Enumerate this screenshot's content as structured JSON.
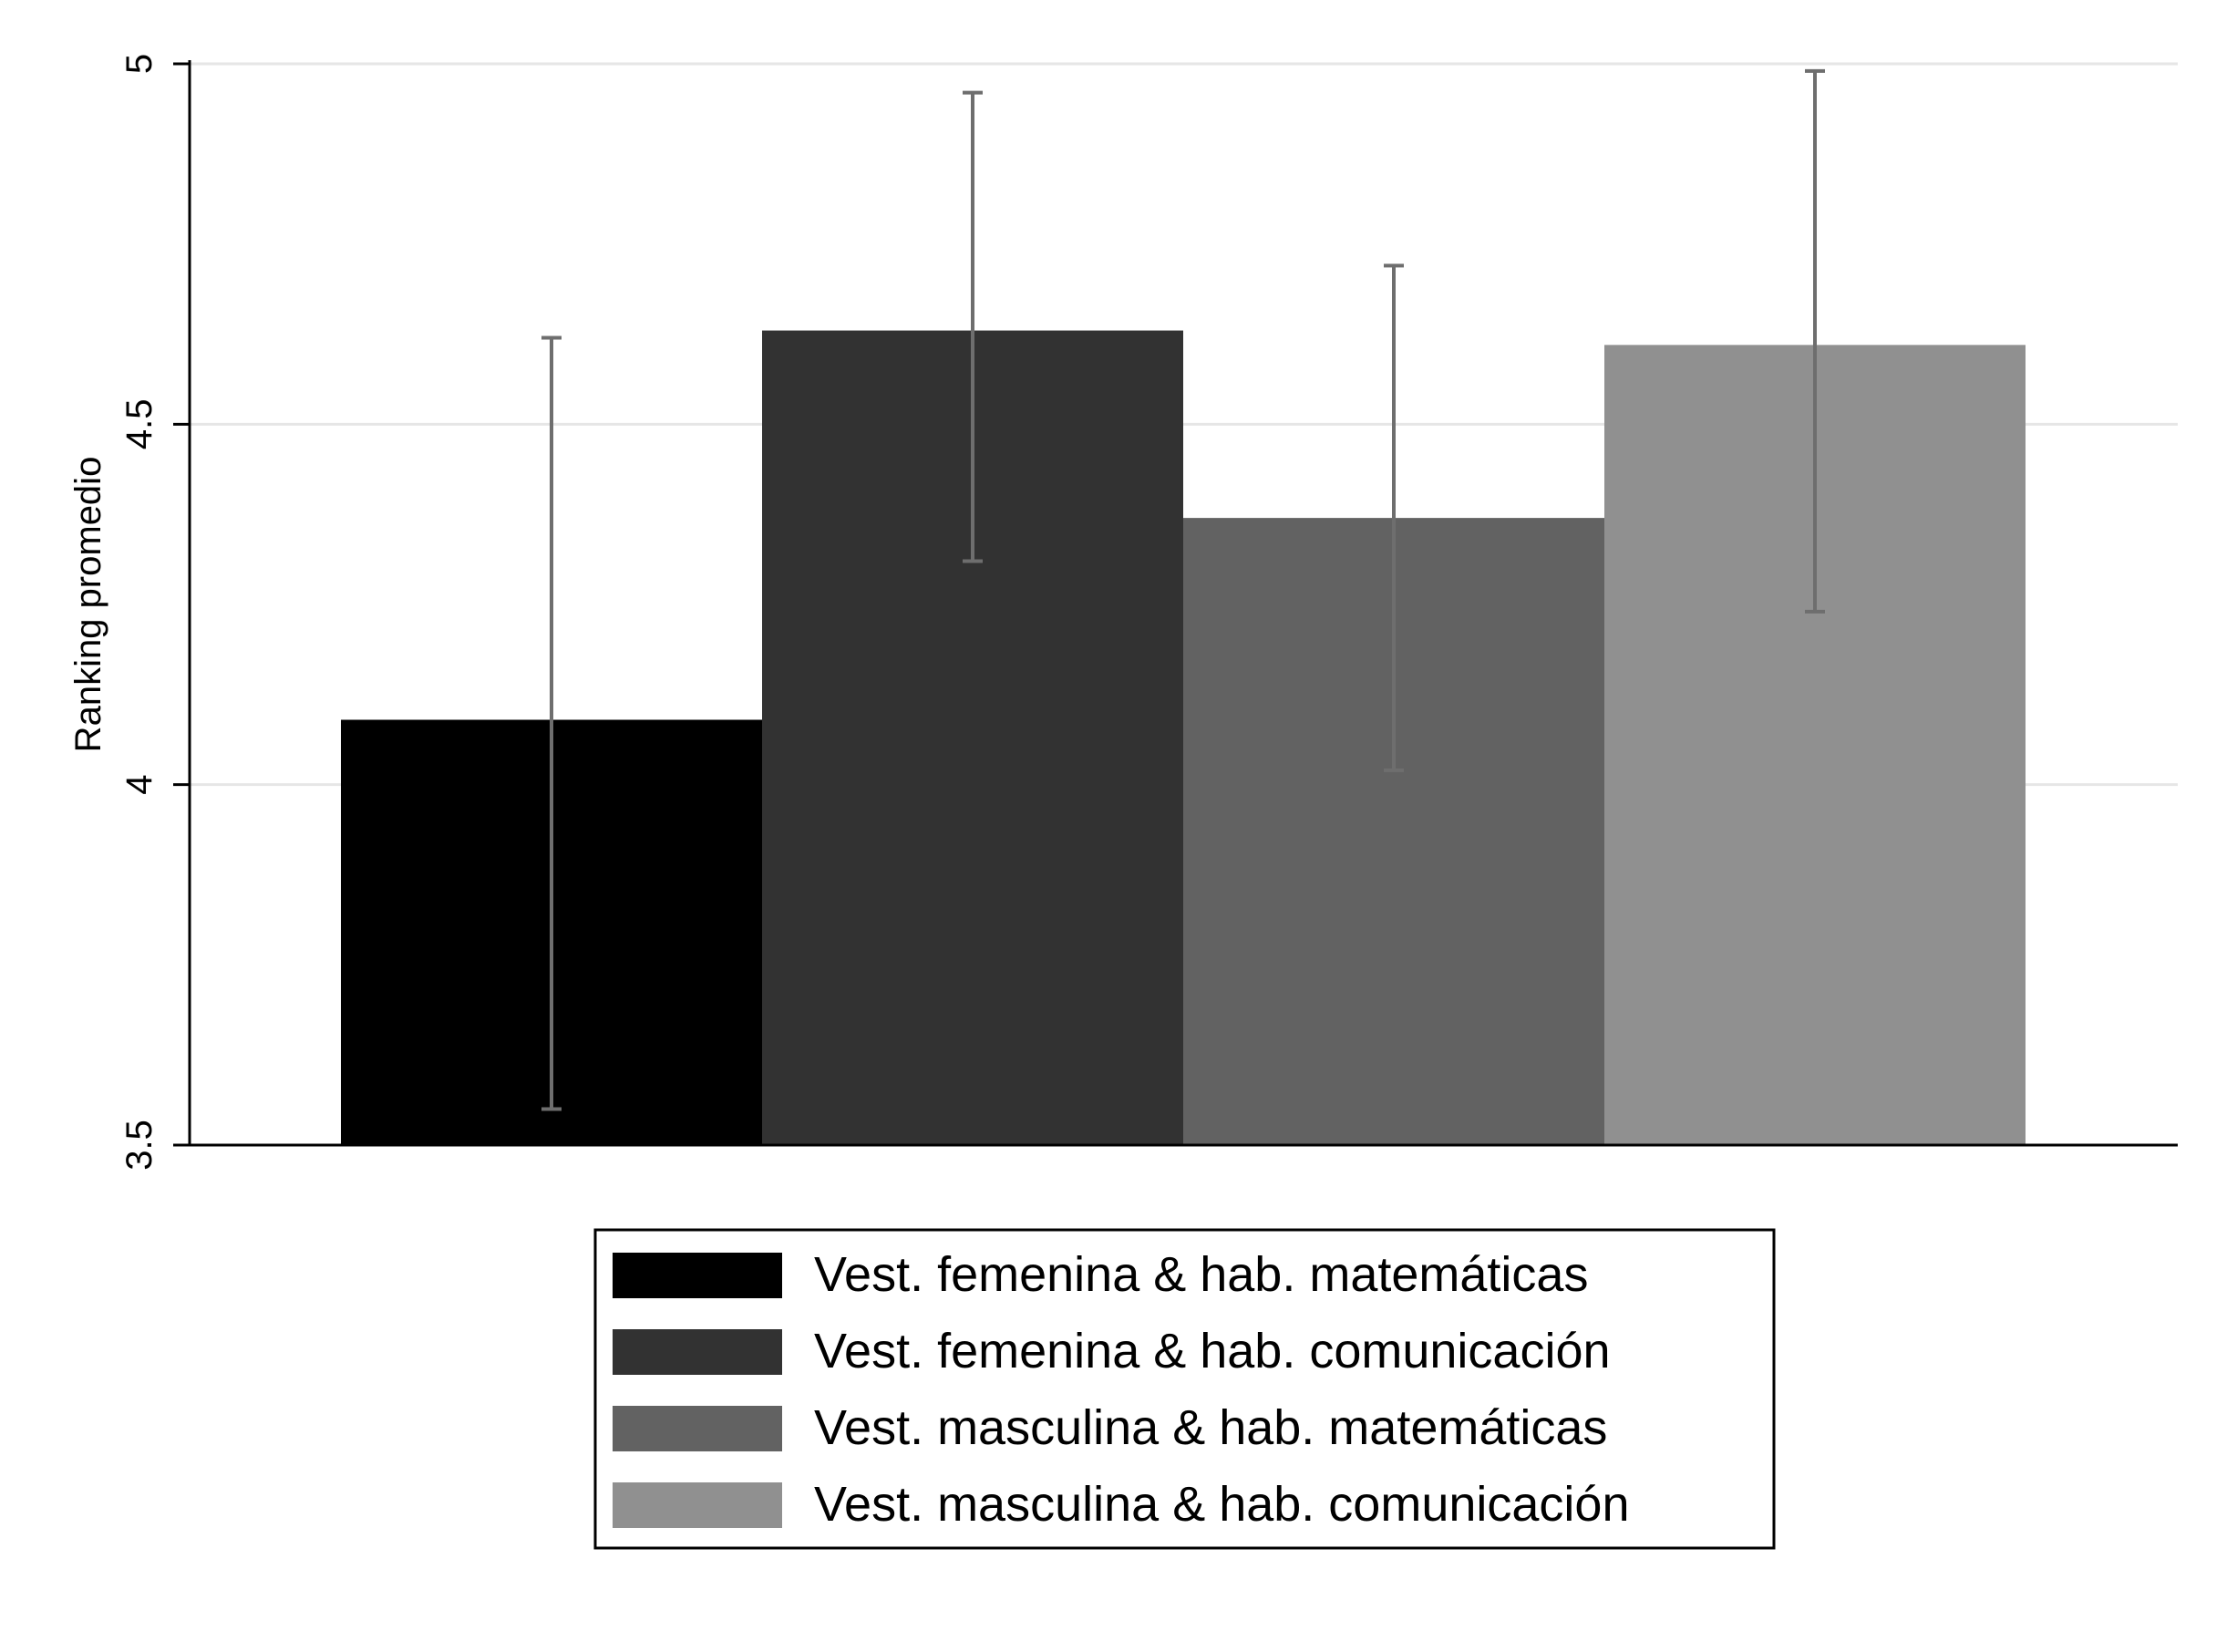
{
  "chart_data": {
    "type": "bar",
    "title": "",
    "xlabel": "",
    "ylabel": "Ranking promedio",
    "ylim": [
      3.5,
      5.0
    ],
    "yticks": [
      3.5,
      4,
      4.5,
      5
    ],
    "ytick_labels": [
      "3.5",
      "4",
      "4.5",
      "5"
    ],
    "grid": "horizontal",
    "legend_position": "bottom",
    "series": [
      {
        "name": "Vest. femenina & hab. matemáticas",
        "value": 4.09,
        "ci_low": 3.55,
        "ci_high": 4.62,
        "color": "#000000"
      },
      {
        "name": "Vest. femenina & hab. comunicación",
        "value": 4.63,
        "ci_low": 4.31,
        "ci_high": 4.96,
        "color": "#323232"
      },
      {
        "name": "Vest. masculina & hab. matemáticas",
        "value": 4.37,
        "ci_low": 4.02,
        "ci_high": 4.72,
        "color": "#626262"
      },
      {
        "name": "Vest. masculina & hab. comunicación",
        "value": 4.61,
        "ci_low": 4.24,
        "ci_high": 4.99,
        "color": "#909090"
      }
    ],
    "errorbar_color": "#6e6e6e",
    "gridline_color": "#e6e6e6"
  }
}
